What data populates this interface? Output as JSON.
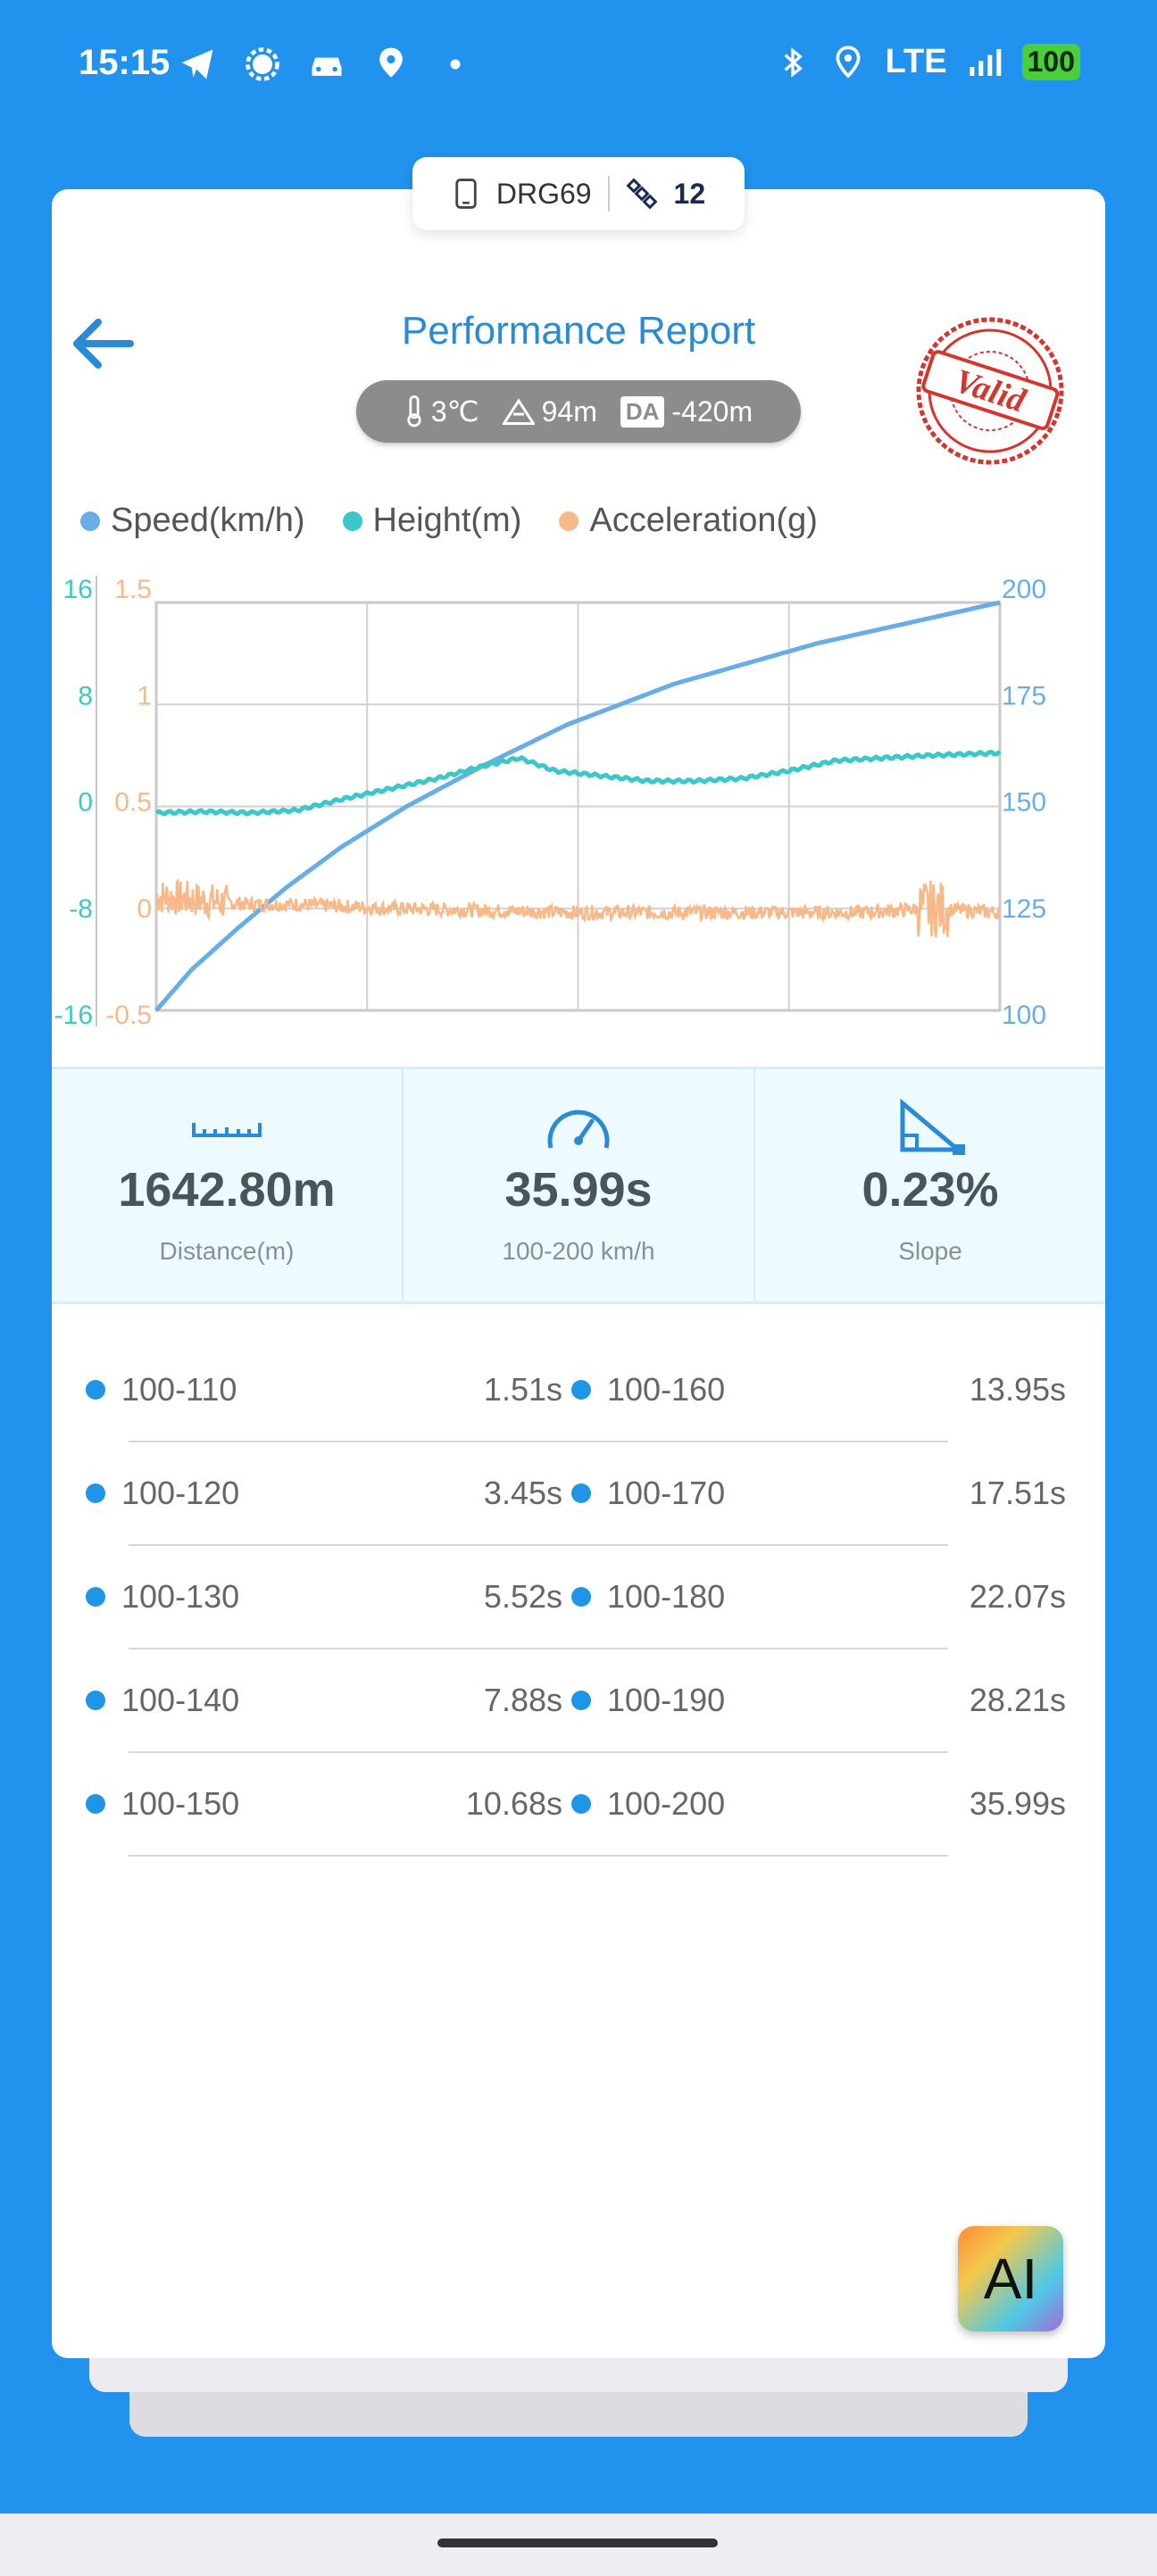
{
  "status_bar": {
    "time": "15:15",
    "network": "LTE",
    "battery": "100"
  },
  "device": {
    "name": "DRG69",
    "satellites": "12"
  },
  "header": {
    "title": "Performance Report",
    "stamp": "Valid"
  },
  "weather": {
    "temperature": "3℃",
    "altitude": "94m",
    "da_label": "DA",
    "density_altitude": "-420m"
  },
  "legend": [
    {
      "label": "Speed(km/h)",
      "color": "#67aee6"
    },
    {
      "label": "Height(m)",
      "color": "#3cc8c8"
    },
    {
      "label": "Acceleration(g)",
      "color": "#f8b887"
    }
  ],
  "chart_data": {
    "type": "line",
    "axes": {
      "height_ticks": [
        "16",
        "8",
        "0",
        "-8",
        "-16"
      ],
      "accel_ticks": [
        "1.5",
        "1",
        "0.5",
        "0",
        "-0.5"
      ],
      "speed_ticks": [
        "200",
        "175",
        "150",
        "125",
        "100"
      ],
      "height_range": [
        -16,
        16
      ],
      "accel_range": [
        -0.5,
        1.5
      ],
      "speed_range": [
        100,
        200
      ],
      "x_range": [
        0,
        35.99
      ]
    },
    "grid": true,
    "series": [
      {
        "name": "Speed(km/h)",
        "color": "#67aee6",
        "axis": "speed",
        "x": [
          0,
          1.51,
          3.45,
          5.52,
          7.88,
          10.68,
          13.95,
          17.51,
          22.07,
          28.21,
          35.99
        ],
        "y": [
          100,
          110,
          120,
          130,
          140,
          150,
          160,
          170,
          180,
          190,
          200
        ]
      },
      {
        "name": "Height(m)",
        "color": "#3cc8c8",
        "axis": "height",
        "x": [
          0,
          2,
          4,
          6,
          8,
          10,
          12,
          14,
          15.5,
          17,
          19,
          21,
          23,
          25,
          27,
          29,
          31,
          33,
          35.99
        ],
        "y": [
          -0.5,
          -0.4,
          -0.5,
          -0.3,
          0.6,
          1.4,
          2.2,
          3.2,
          3.8,
          2.8,
          2.4,
          2.0,
          2.0,
          2.2,
          2.8,
          3.6,
          3.8,
          4.0,
          4.2
        ]
      },
      {
        "name": "Acceleration(g)",
        "color": "#f8b887",
        "axis": "accel",
        "x": [
          0,
          2,
          4,
          6,
          8,
          10,
          14,
          18,
          22,
          26,
          30,
          33,
          35.99
        ],
        "y": [
          0.06,
          0.04,
          0.02,
          0.02,
          0.01,
          0.0,
          -0.01,
          -0.02,
          -0.02,
          -0.02,
          -0.02,
          0.0,
          -0.02
        ]
      }
    ]
  },
  "stats": [
    {
      "value": "1642.80m",
      "label": "Distance(m)",
      "icon": "ruler-icon"
    },
    {
      "value": "35.99s",
      "label": "100-200 km/h",
      "icon": "speedometer-icon"
    },
    {
      "value": "0.23%",
      "label": "Slope",
      "icon": "slope-icon"
    }
  ],
  "splits": [
    {
      "left_range": "100-110",
      "left_time": "1.51s",
      "right_range": "100-160",
      "right_time": "13.95s"
    },
    {
      "left_range": "100-120",
      "left_time": "3.45s",
      "right_range": "100-170",
      "right_time": "17.51s"
    },
    {
      "left_range": "100-130",
      "left_time": "5.52s",
      "right_range": "100-180",
      "right_time": "22.07s"
    },
    {
      "left_range": "100-140",
      "left_time": "7.88s",
      "right_range": "100-190",
      "right_time": "28.21s"
    },
    {
      "left_range": "100-150",
      "left_time": "10.68s",
      "right_range": "100-200",
      "right_time": "35.99s"
    }
  ],
  "ai_button": {
    "label": "AI"
  }
}
